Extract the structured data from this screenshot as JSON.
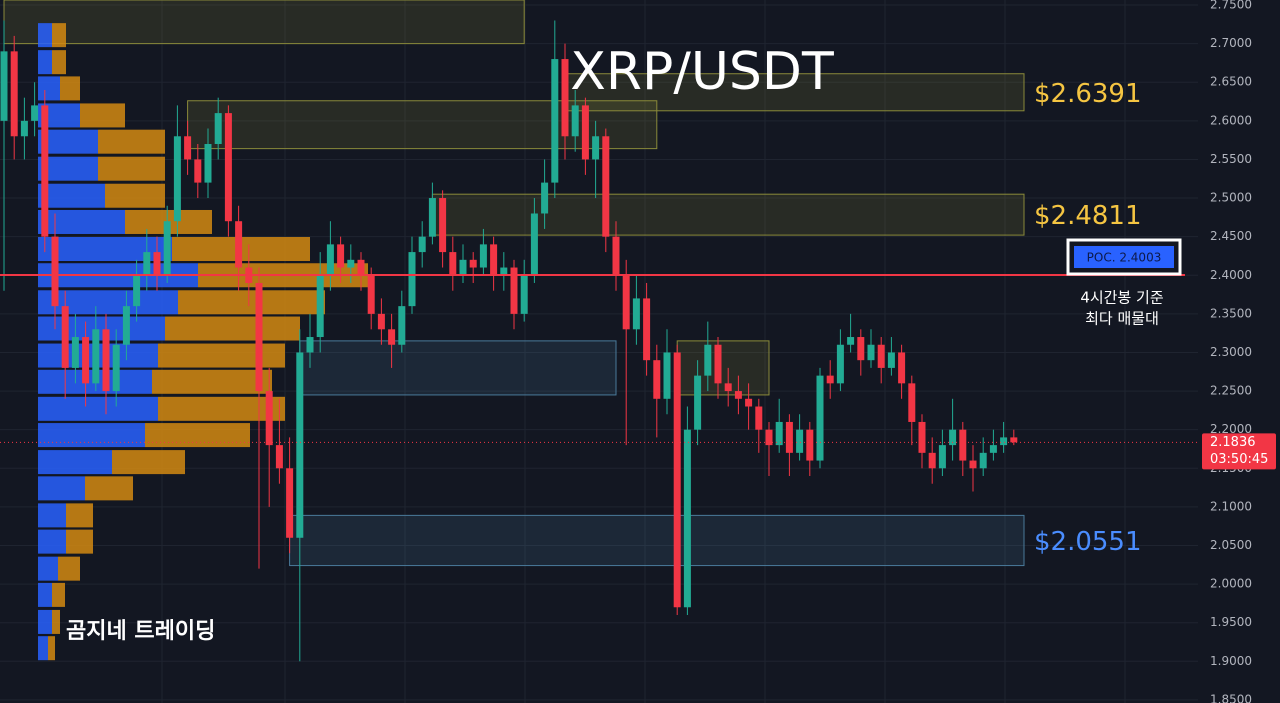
{
  "chart_data": {
    "type": "candlestick",
    "title": "XRP/USDT",
    "watermark": "곰지네 트레이딩",
    "up_color": "#22ab94",
    "down_color": "#f23645",
    "ylim": [
      1.846,
      2.7565
    ],
    "yticks": [
      {
        "value": 2.75,
        "label": "2.7500"
      },
      {
        "value": 2.7,
        "label": "2.7000"
      },
      {
        "value": 2.65,
        "label": "2.6500"
      },
      {
        "value": 2.6,
        "label": "2.6000"
      },
      {
        "value": 2.55,
        "label": "2.5500"
      },
      {
        "value": 2.5,
        "label": "2.5000"
      },
      {
        "value": 2.45,
        "label": "2.4500"
      },
      {
        "value": 2.4,
        "label": "2.4000"
      },
      {
        "value": 2.35,
        "label": "2.3500"
      },
      {
        "value": 2.3,
        "label": "2.3000"
      },
      {
        "value": 2.25,
        "label": "2.2500"
      },
      {
        "value": 2.2,
        "label": "2.2000"
      },
      {
        "value": 2.15,
        "label": "2.1500"
      },
      {
        "value": 2.1,
        "label": "2.1000"
      },
      {
        "value": 2.05,
        "label": "2.0500"
      },
      {
        "value": 2.0,
        "label": "2.0000"
      },
      {
        "value": 1.95,
        "label": "1.9500"
      },
      {
        "value": 1.9,
        "label": "1.9000"
      },
      {
        "value": 1.85,
        "label": "1.8500"
      }
    ],
    "grid": true,
    "ohlc": [
      [
        2.6,
        2.73,
        2.38,
        2.69
      ],
      [
        2.69,
        2.71,
        2.55,
        2.58
      ],
      [
        2.58,
        2.63,
        2.55,
        2.6
      ],
      [
        2.6,
        2.65,
        2.58,
        2.62
      ],
      [
        2.62,
        2.64,
        2.43,
        2.45
      ],
      [
        2.45,
        2.48,
        2.33,
        2.36
      ],
      [
        2.36,
        2.38,
        2.24,
        2.28
      ],
      [
        2.28,
        2.35,
        2.26,
        2.32
      ],
      [
        2.32,
        2.34,
        2.23,
        2.26
      ],
      [
        2.26,
        2.36,
        2.25,
        2.33
      ],
      [
        2.33,
        2.35,
        2.22,
        2.25
      ],
      [
        2.25,
        2.33,
        2.23,
        2.31
      ],
      [
        2.31,
        2.38,
        2.29,
        2.36
      ],
      [
        2.36,
        2.42,
        2.34,
        2.4
      ],
      [
        2.4,
        2.46,
        2.38,
        2.43
      ],
      [
        2.43,
        2.45,
        2.38,
        2.4
      ],
      [
        2.4,
        2.49,
        2.39,
        2.47
      ],
      [
        2.47,
        2.62,
        2.45,
        2.58
      ],
      [
        2.58,
        2.6,
        2.53,
        2.55
      ],
      [
        2.55,
        2.57,
        2.5,
        2.52
      ],
      [
        2.52,
        2.59,
        2.5,
        2.57
      ],
      [
        2.57,
        2.63,
        2.55,
        2.61
      ],
      [
        2.61,
        2.62,
        2.45,
        2.47
      ],
      [
        2.47,
        2.49,
        2.38,
        2.41
      ],
      [
        2.41,
        2.44,
        2.36,
        2.39
      ],
      [
        2.39,
        2.41,
        2.02,
        2.25
      ],
      [
        2.25,
        2.28,
        2.1,
        2.18
      ],
      [
        2.18,
        2.24,
        2.13,
        2.15
      ],
      [
        2.15,
        2.19,
        2.04,
        2.06
      ],
      [
        2.06,
        2.33,
        1.9,
        2.3
      ],
      [
        2.3,
        2.35,
        2.28,
        2.32
      ],
      [
        2.32,
        2.43,
        2.3,
        2.4
      ],
      [
        2.4,
        2.47,
        2.38,
        2.44
      ],
      [
        2.44,
        2.45,
        2.39,
        2.41
      ],
      [
        2.41,
        2.44,
        2.39,
        2.42
      ],
      [
        2.42,
        2.43,
        2.38,
        2.4
      ],
      [
        2.4,
        2.41,
        2.33,
        2.35
      ],
      [
        2.35,
        2.37,
        2.31,
        2.33
      ],
      [
        2.33,
        2.35,
        2.28,
        2.31
      ],
      [
        2.31,
        2.38,
        2.3,
        2.36
      ],
      [
        2.36,
        2.45,
        2.35,
        2.43
      ],
      [
        2.43,
        2.47,
        2.41,
        2.45
      ],
      [
        2.45,
        2.52,
        2.44,
        2.5
      ],
      [
        2.5,
        2.51,
        2.41,
        2.43
      ],
      [
        2.43,
        2.45,
        2.38,
        2.4
      ],
      [
        2.4,
        2.44,
        2.39,
        2.42
      ],
      [
        2.42,
        2.43,
        2.39,
        2.41
      ],
      [
        2.41,
        2.46,
        2.4,
        2.44
      ],
      [
        2.44,
        2.45,
        2.38,
        2.4
      ],
      [
        2.4,
        2.43,
        2.38,
        2.41
      ],
      [
        2.41,
        2.42,
        2.33,
        2.35
      ],
      [
        2.35,
        2.42,
        2.34,
        2.4
      ],
      [
        2.4,
        2.5,
        2.39,
        2.48
      ],
      [
        2.48,
        2.55,
        2.46,
        2.52
      ],
      [
        2.52,
        2.73,
        2.5,
        2.68
      ],
      [
        2.68,
        2.7,
        2.55,
        2.58
      ],
      [
        2.58,
        2.64,
        2.56,
        2.62
      ],
      [
        2.62,
        2.63,
        2.53,
        2.55
      ],
      [
        2.55,
        2.6,
        2.5,
        2.58
      ],
      [
        2.58,
        2.59,
        2.43,
        2.45
      ],
      [
        2.45,
        2.47,
        2.38,
        2.4
      ],
      [
        2.4,
        2.42,
        2.18,
        2.33
      ],
      [
        2.33,
        2.4,
        2.31,
        2.37
      ],
      [
        2.37,
        2.39,
        2.27,
        2.29
      ],
      [
        2.29,
        2.31,
        2.19,
        2.24
      ],
      [
        2.24,
        2.33,
        2.22,
        2.3
      ],
      [
        2.3,
        2.31,
        1.96,
        1.97
      ],
      [
        1.97,
        2.23,
        1.96,
        2.2
      ],
      [
        2.2,
        2.29,
        2.18,
        2.27
      ],
      [
        2.27,
        2.34,
        2.25,
        2.31
      ],
      [
        2.31,
        2.32,
        2.24,
        2.26
      ],
      [
        2.26,
        2.28,
        2.23,
        2.25
      ],
      [
        2.25,
        2.27,
        2.22,
        2.24
      ],
      [
        2.24,
        2.26,
        2.2,
        2.23
      ],
      [
        2.23,
        2.24,
        2.17,
        2.2
      ],
      [
        2.2,
        2.21,
        2.14,
        2.18
      ],
      [
        2.18,
        2.24,
        2.17,
        2.21
      ],
      [
        2.21,
        2.22,
        2.14,
        2.17
      ],
      [
        2.17,
        2.22,
        2.16,
        2.2
      ],
      [
        2.2,
        2.21,
        2.14,
        2.16
      ],
      [
        2.16,
        2.28,
        2.15,
        2.27
      ],
      [
        2.27,
        2.29,
        2.24,
        2.26
      ],
      [
        2.26,
        2.33,
        2.25,
        2.31
      ],
      [
        2.31,
        2.35,
        2.3,
        2.32
      ],
      [
        2.32,
        2.33,
        2.27,
        2.29
      ],
      [
        2.29,
        2.33,
        2.28,
        2.31
      ],
      [
        2.31,
        2.32,
        2.26,
        2.28
      ],
      [
        2.28,
        2.32,
        2.27,
        2.3
      ],
      [
        2.3,
        2.31,
        2.24,
        2.26
      ],
      [
        2.26,
        2.27,
        2.18,
        2.21
      ],
      [
        2.21,
        2.22,
        2.15,
        2.17
      ],
      [
        2.17,
        2.19,
        2.13,
        2.15
      ],
      [
        2.15,
        2.2,
        2.14,
        2.18
      ],
      [
        2.18,
        2.24,
        2.16,
        2.2
      ],
      [
        2.2,
        2.21,
        2.14,
        2.16
      ],
      [
        2.16,
        2.18,
        2.12,
        2.15
      ],
      [
        2.15,
        2.19,
        2.14,
        2.17
      ],
      [
        2.17,
        2.2,
        2.16,
        2.18
      ],
      [
        2.18,
        2.21,
        2.17,
        2.19
      ],
      [
        2.19,
        2.2,
        2.18,
        2.1836
      ]
    ],
    "zones": [
      {
        "top": 2.7565,
        "bottom": 2.7,
        "start": 0,
        "end": 51,
        "color": "#8a8a3a"
      },
      {
        "top": 2.626,
        "bottom": 2.564,
        "start": 18,
        "end": 64,
        "color": "#8a8a3a"
      },
      {
        "top": 2.661,
        "bottom": 2.613,
        "start": 55,
        "end": 100,
        "color": "#8a8a3a",
        "label": "$2.6391",
        "label_color": "#f5c542"
      },
      {
        "top": 2.505,
        "bottom": 2.452,
        "start": 42,
        "end": 100,
        "color": "#8a8a3a",
        "label": "$2.4811",
        "label_color": "#f5c542"
      },
      {
        "top": 2.315,
        "bottom": 2.245,
        "start": 29,
        "end": 60,
        "color": "#4a7a9a"
      },
      {
        "top": 2.089,
        "bottom": 2.024,
        "start": 28,
        "end": 100,
        "color": "#4a7a9a",
        "label": "$2.0551",
        "label_color": "#4a8dff"
      },
      {
        "top": 2.315,
        "bottom": 2.245,
        "start": 66,
        "end": 75,
        "color": "#8a8a3a"
      }
    ],
    "volume_profile": {
      "levels": [
        2.711,
        2.676,
        2.642,
        2.607,
        2.573,
        2.538,
        2.503,
        2.469,
        2.434,
        2.4,
        2.365,
        2.331,
        2.296,
        2.262,
        2.227,
        2.193,
        2.158,
        2.124,
        2.089,
        2.055,
        2.02,
        1.986,
        1.951,
        1.917
      ],
      "buy": [
        14,
        14,
        22,
        42,
        60,
        60,
        67,
        87,
        134,
        160,
        140,
        127,
        120,
        114,
        120,
        107,
        74,
        47,
        28,
        28,
        20,
        14,
        14,
        10
      ],
      "sell": [
        14,
        14,
        20,
        45,
        67,
        67,
        60,
        87,
        138,
        170,
        147,
        135,
        127,
        120,
        127,
        105,
        73,
        48,
        27,
        27,
        22,
        13,
        8,
        7
      ],
      "buy_color": "#2962ff",
      "sell_color": "#d48a12"
    },
    "poc": {
      "value": 2.4003,
      "label": "POC. 2.4003",
      "color": "#f23645"
    },
    "poc_note": [
      "4시간봉 기준",
      "최다 매물대"
    ],
    "last_price": 2.1836,
    "countdown": "03:50:45"
  }
}
